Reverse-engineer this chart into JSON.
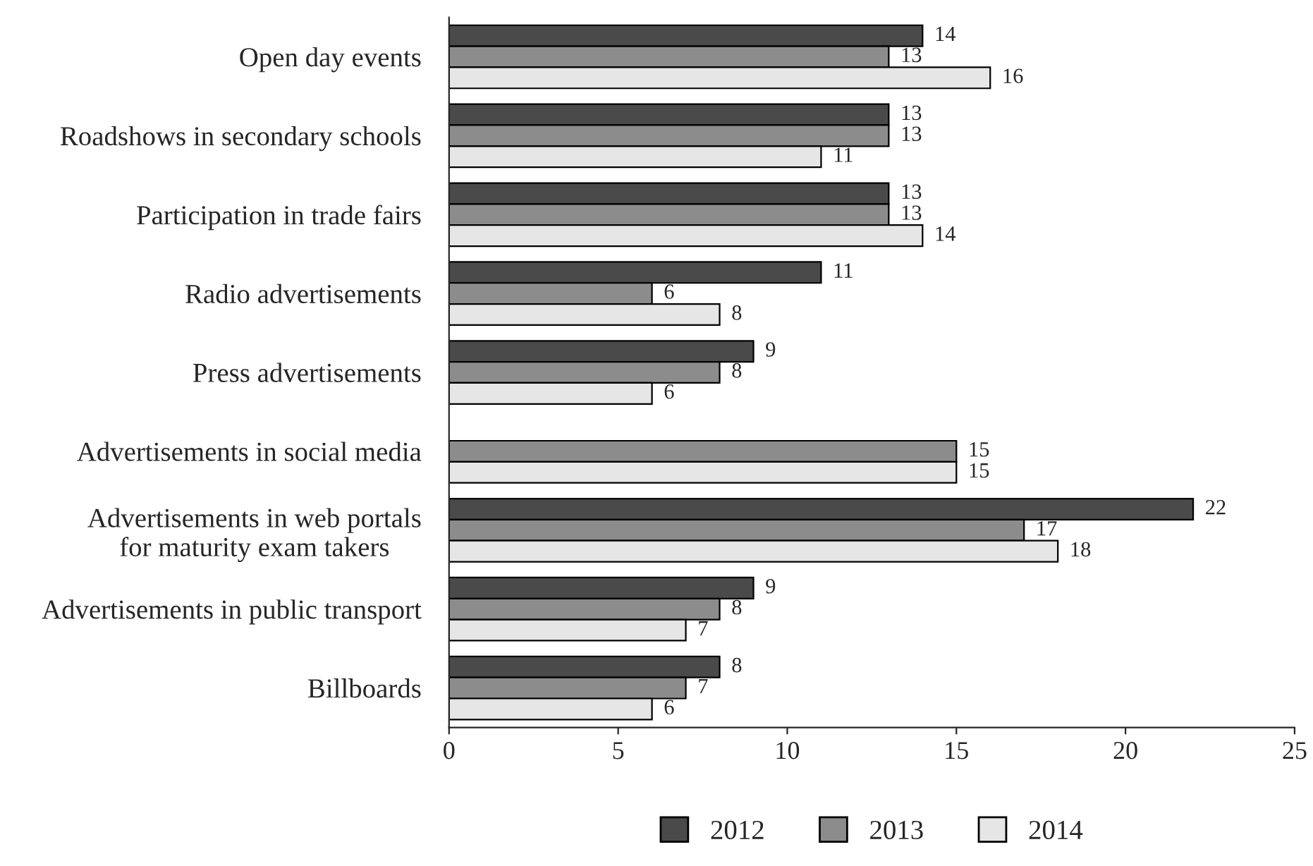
{
  "chart_data": {
    "type": "bar",
    "orientation": "horizontal",
    "categories": [
      "Open day events",
      "Roadshows in secondary schools",
      "Participation in trade fairs",
      "Radio advertisements",
      "Press advertisements",
      "Advertisements in social media",
      "Advertisements in web portals\nfor maturity exam takers",
      "Advertisements in public transport",
      "Billboards"
    ],
    "series": [
      {
        "name": "2012",
        "color": "#4a4a4a",
        "values": [
          14,
          13,
          13,
          11,
          9,
          null,
          22,
          9,
          8
        ]
      },
      {
        "name": "2013",
        "color": "#8c8c8c",
        "values": [
          13,
          13,
          13,
          6,
          8,
          15,
          17,
          8,
          7
        ]
      },
      {
        "name": "2014",
        "color": "#e6e6e6",
        "values": [
          16,
          11,
          14,
          8,
          6,
          15,
          18,
          7,
          6
        ]
      }
    ],
    "xlim": [
      0,
      25
    ],
    "xticks": [
      0,
      5,
      10,
      15,
      20,
      25
    ],
    "data_labels": true,
    "grid": false,
    "legend": "bottom"
  }
}
